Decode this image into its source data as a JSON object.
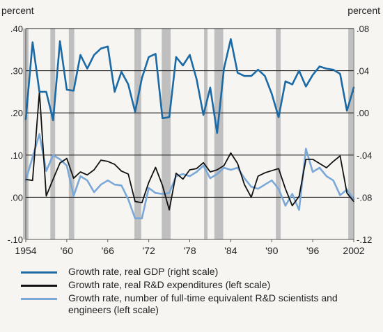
{
  "chart_data": {
    "type": "line",
    "left_axis_title": "percent",
    "right_axis_title": "percent",
    "left_ticks": [
      ".40",
      ".30",
      ".20",
      ".10",
      ".00",
      "-.10"
    ],
    "left_tick_values": [
      0.4,
      0.3,
      0.2,
      0.1,
      0.0,
      -0.1
    ],
    "right_ticks": [
      ".08",
      ".04",
      ".00",
      "-.04",
      "-.08",
      "-.12"
    ],
    "right_tick_values": [
      0.08,
      0.04,
      0.0,
      -0.04,
      -0.08,
      -0.12
    ],
    "left_ylim": [
      -0.1,
      0.4
    ],
    "right_ylim": [
      -0.12,
      0.08
    ],
    "x_range": [
      1954,
      2002
    ],
    "x_ticks": [
      "1954",
      "'60",
      "'66",
      "'72",
      "'78",
      "'84",
      "'90",
      "'96",
      "2002"
    ],
    "x_tick_values": [
      1954,
      1960,
      1966,
      1972,
      1978,
      1984,
      1990,
      1996,
      2002
    ],
    "gridlines": true,
    "recession_periods": [
      [
        1953.6,
        1954.4
      ],
      [
        1957.6,
        1958.3
      ],
      [
        1960.3,
        1961.1
      ],
      [
        1969.9,
        1970.9
      ],
      [
        1973.9,
        1975.2
      ],
      [
        1980.1,
        1980.6
      ],
      [
        1981.6,
        1982.9
      ],
      [
        1990.6,
        1991.3
      ],
      [
        2001.2,
        2001.9
      ]
    ],
    "series": [
      {
        "name": "Growth rate, real GDP (right scale)",
        "color": "#1b6aa5",
        "axis": "right",
        "x": [
          1954,
          1955,
          1956,
          1957,
          1958,
          1959,
          1960,
          1961,
          1962,
          1963,
          1964,
          1965,
          1966,
          1967,
          1968,
          1969,
          1970,
          1971,
          1972,
          1973,
          1974,
          1975,
          1976,
          1977,
          1978,
          1979,
          1980,
          1981,
          1982,
          1983,
          1984,
          1985,
          1986,
          1987,
          1988,
          1989,
          1990,
          1991,
          1992,
          1993,
          1994,
          1995,
          1996,
          1997,
          1998,
          1999,
          2000,
          2001,
          2002
        ],
        "y": [
          -0.006,
          0.067,
          0.02,
          0.02,
          -0.007,
          0.068,
          0.022,
          0.021,
          0.055,
          0.042,
          0.055,
          0.061,
          0.063,
          0.02,
          0.039,
          0.027,
          0.001,
          0.033,
          0.053,
          0.056,
          -0.005,
          -0.004,
          0.053,
          0.045,
          0.055,
          0.032,
          -0.002,
          0.024,
          -0.019,
          0.042,
          0.07,
          0.038,
          0.035,
          0.035,
          0.041,
          0.035,
          0.018,
          -0.004,
          0.03,
          0.027,
          0.04,
          0.025,
          0.036,
          0.044,
          0.042,
          0.041,
          0.037,
          0.002,
          0.024
        ]
      },
      {
        "name": "Growth rate, real R&D expenditures (left scale)",
        "color": "#111111",
        "axis": "left",
        "x": [
          1954,
          1955,
          1956,
          1957,
          1958,
          1959,
          1960,
          1961,
          1962,
          1963,
          1964,
          1965,
          1966,
          1967,
          1968,
          1969,
          1970,
          1971,
          1972,
          1973,
          1974,
          1975,
          1976,
          1977,
          1978,
          1979,
          1980,
          1981,
          1982,
          1983,
          1984,
          1985,
          1986,
          1987,
          1988,
          1989,
          1990,
          1991,
          1992,
          1993,
          1994,
          1995,
          1996,
          1997,
          1998,
          1999,
          2000,
          2001,
          2002
        ],
        "y": [
          0.042,
          0.04,
          0.25,
          0.003,
          0.043,
          0.081,
          0.092,
          0.045,
          0.06,
          0.053,
          0.065,
          0.088,
          0.085,
          0.078,
          0.062,
          0.055,
          -0.01,
          -0.013,
          0.035,
          0.071,
          0.028,
          -0.03,
          0.057,
          0.043,
          0.065,
          0.068,
          0.082,
          0.06,
          0.065,
          0.075,
          0.105,
          0.08,
          0.03,
          0.0,
          0.05,
          0.058,
          0.063,
          0.068,
          0.02,
          -0.02,
          0.002,
          0.09,
          0.09,
          0.08,
          0.07,
          0.085,
          0.098,
          0.01,
          -0.01
        ]
      },
      {
        "name": "Growth rate, number of full-time equivalent R&D scientists and engineers (left scale)",
        "color": "#7aa8d8",
        "axis": "left",
        "x": [
          1954,
          1955,
          1956,
          1957,
          1958,
          1959,
          1960,
          1961,
          1962,
          1963,
          1964,
          1965,
          1966,
          1967,
          1968,
          1969,
          1970,
          1971,
          1972,
          1973,
          1974,
          1975,
          1976,
          1977,
          1978,
          1979,
          1980,
          1981,
          1982,
          1983,
          1984,
          1985,
          1986,
          1987,
          1988,
          1989,
          1990,
          1991,
          1992,
          1993,
          1994,
          1995,
          1996,
          1997,
          1998,
          1999,
          2000,
          2001,
          2002
        ],
        "y": [
          0.04,
          0.095,
          0.15,
          0.062,
          0.1,
          0.09,
          0.075,
          0.003,
          0.05,
          0.04,
          0.012,
          0.03,
          0.04,
          0.03,
          0.028,
          -0.005,
          -0.05,
          -0.05,
          0.022,
          0.01,
          0.008,
          0.01,
          0.05,
          0.055,
          0.05,
          0.06,
          0.075,
          0.045,
          0.055,
          0.07,
          0.065,
          0.07,
          0.045,
          0.025,
          0.02,
          0.03,
          0.04,
          0.02,
          -0.02,
          0.008,
          -0.03,
          0.115,
          0.06,
          0.07,
          0.05,
          0.04,
          0.005,
          0.018,
          -0.005
        ]
      }
    ]
  }
}
